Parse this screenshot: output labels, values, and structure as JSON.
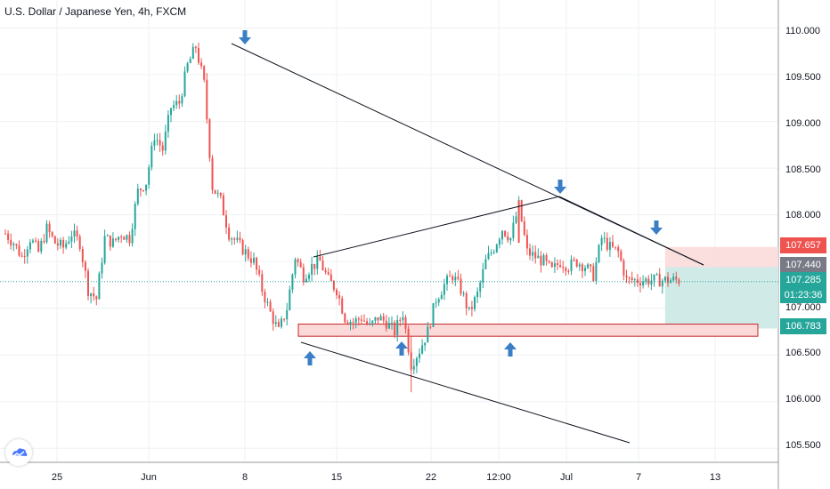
{
  "header": {
    "title": "U.S. Dollar / Japanese Yen, 4h, FXCM"
  },
  "colors": {
    "up": "#26a69a",
    "down": "#ef5350",
    "arrow": "#3a7ec6",
    "trendline": "#131722",
    "zone_fill": "#fbd9d9",
    "zone_border": "#c62828",
    "target_fill": "#cde9e6",
    "stop_fill": "#fbdada",
    "last_price": "#26a69a"
  },
  "y_axis": {
    "ticks": [
      "110.000",
      "109.500",
      "109.000",
      "108.500",
      "108.000",
      "107.500",
      "107.000",
      "106.500",
      "106.000",
      "105.500"
    ]
  },
  "x_axis": {
    "ticks": [
      "25",
      "Jun",
      "8",
      "15",
      "22",
      "12:00",
      "Jul",
      "7",
      "13"
    ]
  },
  "price_labels": [
    {
      "id": "stop",
      "text": "107.657",
      "color": "#ef5350"
    },
    {
      "id": "entry",
      "text": "107.440",
      "color": "#787b86"
    },
    {
      "id": "last",
      "text": "107.285",
      "color": "#26a69a"
    },
    {
      "id": "countdown",
      "text": "01:23:36",
      "color": "#26a69a"
    },
    {
      "id": "target",
      "text": "106.783",
      "color": "#26a69a"
    }
  ],
  "chart_data": {
    "type": "candlestick",
    "title": "U.S. Dollar / Japanese Yen, 4h, FXCM",
    "ylim": [
      105.35,
      110.3
    ],
    "last_price": 107.285,
    "countdown": "01:23:36",
    "path": [
      [
        0.0,
        107.8
      ],
      [
        3,
        107.7
      ],
      [
        6,
        107.55
      ],
      [
        9,
        107.75
      ],
      [
        12,
        107.6
      ],
      [
        15,
        107.85
      ],
      [
        18,
        107.7
      ],
      [
        21,
        107.65
      ],
      [
        24,
        107.8
      ],
      [
        27,
        107.7
      ],
      [
        30,
        107.2
      ],
      [
        33,
        107.1
      ],
      [
        36,
        107.75
      ],
      [
        39,
        107.7
      ],
      [
        42,
        107.8
      ],
      [
        45,
        107.75
      ],
      [
        48,
        108.25
      ],
      [
        51,
        108.35
      ],
      [
        54,
        108.85
      ],
      [
        57,
        108.7
      ],
      [
        60,
        109.15
      ],
      [
        63,
        109.2
      ],
      [
        66,
        109.6
      ],
      [
        69,
        109.8
      ],
      [
        72,
        109.4
      ],
      [
        75,
        108.3
      ],
      [
        78,
        108.15
      ],
      [
        81,
        107.8
      ],
      [
        84,
        107.7
      ],
      [
        87,
        107.6
      ],
      [
        90,
        107.5
      ],
      [
        93,
        107.2
      ],
      [
        96,
        106.95
      ],
      [
        99,
        106.75
      ],
      [
        102,
        107.0
      ],
      [
        105,
        107.55
      ],
      [
        108,
        107.35
      ],
      [
        111,
        107.45
      ],
      [
        114,
        107.5
      ],
      [
        117,
        107.3
      ],
      [
        120,
        107.2
      ],
      [
        123,
        106.9
      ],
      [
        126,
        106.85
      ],
      [
        129,
        106.9
      ],
      [
        132,
        106.8
      ],
      [
        135,
        106.9
      ],
      [
        138,
        106.85
      ],
      [
        141,
        106.75
      ],
      [
        144,
        106.95
      ],
      [
        147,
        106.4
      ],
      [
        150,
        106.55
      ],
      [
        153,
        106.75
      ],
      [
        156,
        107.1
      ],
      [
        159,
        107.25
      ],
      [
        162,
        107.35
      ],
      [
        165,
        107.2
      ],
      [
        168,
        106.95
      ],
      [
        171,
        107.15
      ],
      [
        174,
        107.5
      ],
      [
        177,
        107.65
      ],
      [
        180,
        107.85
      ],
      [
        183,
        107.75
      ],
      [
        186,
        108.1
      ],
      [
        189,
        107.6
      ],
      [
        192,
        107.55
      ],
      [
        195,
        107.5
      ],
      [
        198,
        107.4
      ],
      [
        201,
        107.5
      ],
      [
        204,
        107.45
      ],
      [
        207,
        107.5
      ],
      [
        210,
        107.45
      ],
      [
        213,
        107.35
      ],
      [
        216,
        107.75
      ],
      [
        219,
        107.65
      ],
      [
        222,
        107.6
      ],
      [
        225,
        107.3
      ]
    ],
    "x_ticks": [
      "25",
      "Jun",
      "8",
      "15",
      "22",
      "12:00",
      "Jul",
      "7",
      "13"
    ],
    "y_ticks": [
      "110.000",
      "109.500",
      "109.000",
      "108.500",
      "108.000",
      "107.500",
      "107.000",
      "106.500",
      "106.000",
      "105.500"
    ],
    "trendlines": [
      {
        "name": "upper-resistance",
        "from": [
          69,
          109.85
        ],
        "to": [
          253,
          107.43
        ]
      },
      {
        "name": "rising-top",
        "from": [
          93,
          107.5
        ],
        "to": [
          186,
          108.18
        ]
      },
      {
        "name": "lower-support",
        "from": [
          93,
          106.63
        ],
        "to": [
          224,
          105.52
        ]
      },
      {
        "name": "extension",
        "from": [
          186,
          108.18
        ],
        "to": [
          231,
          107.6
        ]
      }
    ],
    "support_zone": {
      "from": [
        85,
        106.83
      ],
      "to": [
        282,
        106.7
      ]
    },
    "position": {
      "x_start": 239,
      "x_end": 282,
      "entry": 107.44,
      "stop": 107.657,
      "target": 106.783
    },
    "arrows_down": [
      [
        69,
        110.0
      ],
      [
        201,
        108.27
      ],
      [
        236,
        107.82
      ]
    ],
    "arrows_up": [
      [
        91,
        106.38
      ],
      [
        140,
        106.45
      ],
      [
        181,
        106.45
      ]
    ]
  }
}
